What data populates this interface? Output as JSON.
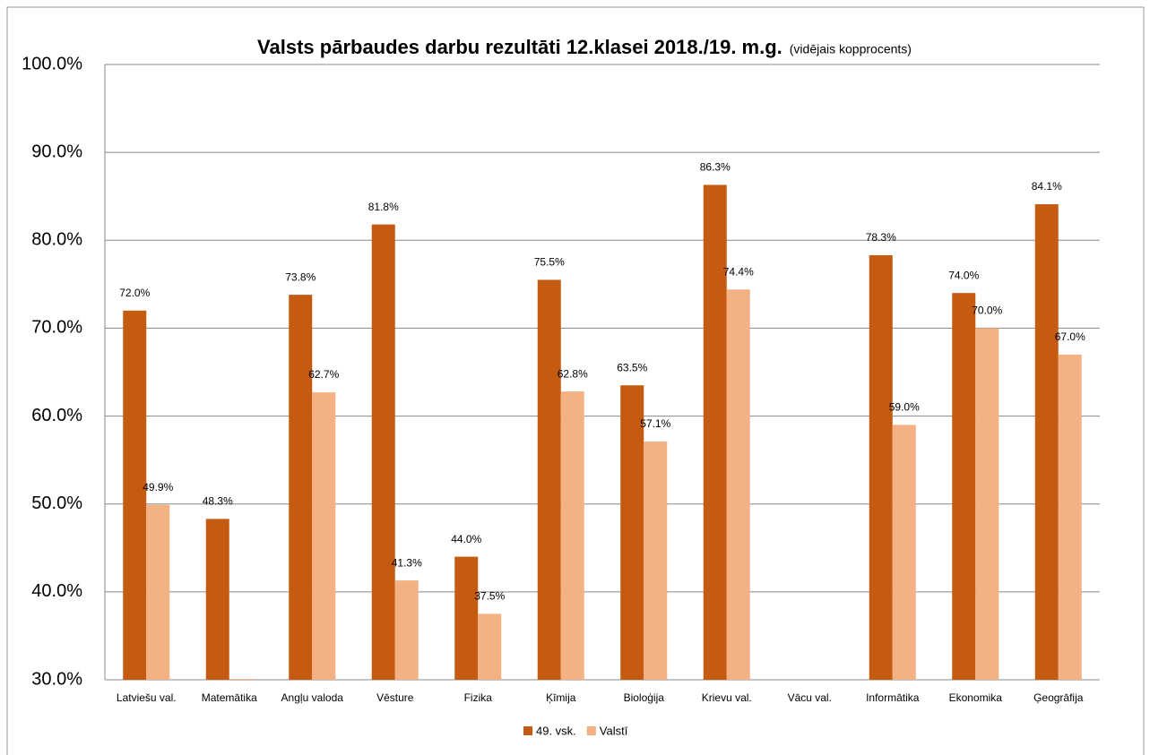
{
  "chart_data": {
    "type": "bar",
    "title": "Valsts pārbaudes darbu rezultāti 12.klasei 2018./19. m.g.",
    "subtitle": "(vidējais kopprocents)",
    "categories": [
      "Latviešu val.",
      "Matemātika",
      "Angļu valoda",
      "Vēsture",
      "Fizika",
      "Ķīmija",
      "Bioloģija",
      "Krievu val.",
      "Vācu val.",
      "Informātika",
      "Ekonomika",
      "Ģeogrāfija"
    ],
    "series": [
      {
        "name": "49. vsk.",
        "color": "#c55a11",
        "values": [
          72.0,
          48.3,
          73.8,
          81.8,
          44.0,
          75.5,
          63.5,
          86.3,
          null,
          78.3,
          74.0,
          84.1
        ],
        "value_labels": [
          "72.0%",
          "48.3%",
          "73.8%",
          "81.8%",
          "44.0%",
          "75.5%",
          "63.5%",
          "86.3%",
          null,
          "78.3%",
          "74.0%",
          "84.1%"
        ]
      },
      {
        "name": "Valstī",
        "color": "#f4b183",
        "values": [
          49.9,
          30.1,
          62.7,
          41.3,
          37.5,
          62.8,
          57.1,
          74.4,
          null,
          59.0,
          70.0,
          67.0
        ],
        "value_labels": [
          "49.9%",
          null,
          "62.7%",
          "41.3%",
          "37.5%",
          "62.8%",
          "57.1%",
          "74.4%",
          null,
          "59.0%",
          "70.0%",
          "67.0%"
        ]
      }
    ],
    "ylim": [
      30,
      100
    ],
    "yticks": [
      {
        "value": 30,
        "label": "30.0%"
      },
      {
        "value": 40,
        "label": "40.0%"
      },
      {
        "value": 50,
        "label": "50.0%"
      },
      {
        "value": 60,
        "label": "60.0%"
      },
      {
        "value": 70,
        "label": "70.0%"
      },
      {
        "value": 80,
        "label": "80.0%"
      },
      {
        "value": 90,
        "label": "90.0%"
      },
      {
        "value": 100,
        "label": "100.0%"
      }
    ],
    "grid": true,
    "legend": "bottom"
  }
}
